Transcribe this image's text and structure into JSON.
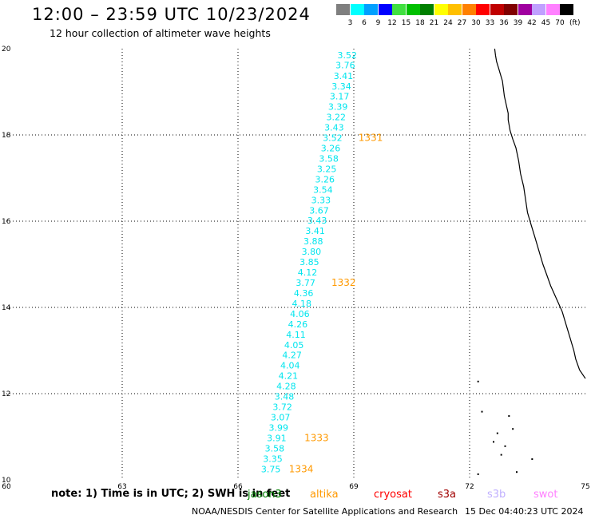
{
  "header": {
    "title": "12:00 – 23:59 UTC 10/23/2024",
    "subtitle": "12 hour collection of altimeter wave heights"
  },
  "legend": {
    "unit": "(ft)",
    "swatches": [
      {
        "color": "#7f7f7f",
        "label": "3"
      },
      {
        "color": "#00ffff",
        "label": "6"
      },
      {
        "color": "#00a0ff",
        "label": "9"
      },
      {
        "color": "#0000ff",
        "label": "12"
      },
      {
        "color": "#40e040",
        "label": "15"
      },
      {
        "color": "#00c000",
        "label": "18"
      },
      {
        "color": "#008000",
        "label": "21"
      },
      {
        "color": "#ffff00",
        "label": "24"
      },
      {
        "color": "#ffc000",
        "label": "27"
      },
      {
        "color": "#ff8000",
        "label": "30"
      },
      {
        "color": "#ff0000",
        "label": "33"
      },
      {
        "color": "#c00000",
        "label": "36"
      },
      {
        "color": "#800000",
        "label": "39"
      },
      {
        "color": "#a000a0",
        "label": "42"
      },
      {
        "color": "#c0a0ff",
        "label": "45"
      },
      {
        "color": "#ff80ff",
        "label": "70"
      },
      {
        "color": "#000000",
        "label": ""
      }
    ]
  },
  "map": {
    "lon_range": [
      60,
      75
    ],
    "lat_range": [
      10,
      20
    ],
    "x_ticks": [
      "60",
      "63",
      "66",
      "69",
      "72",
      "75"
    ],
    "y_ticks": [
      "10",
      "12",
      "14",
      "16",
      "18",
      "20"
    ],
    "grid_lon": [
      63,
      66,
      69,
      72
    ],
    "grid_lat": [
      12,
      14,
      16,
      18
    ],
    "track_color": "#00e5ee",
    "time_color": "#ff9900",
    "coast_color": "#000000",
    "observations": [
      {
        "lon": 68.83,
        "lat": 19.78,
        "swh": "3.52"
      },
      {
        "lon": 68.78,
        "lat": 19.55,
        "swh": "3.76"
      },
      {
        "lon": 68.73,
        "lat": 19.3,
        "swh": "3.41"
      },
      {
        "lon": 68.68,
        "lat": 19.06,
        "swh": "3.34"
      },
      {
        "lon": 68.63,
        "lat": 18.82,
        "swh": "3.17"
      },
      {
        "lon": 68.59,
        "lat": 18.58,
        "swh": "3.39"
      },
      {
        "lon": 68.54,
        "lat": 18.34,
        "swh": "3.22"
      },
      {
        "lon": 68.49,
        "lat": 18.1,
        "swh": "3.43"
      },
      {
        "lon": 68.45,
        "lat": 17.86,
        "swh": "3.52"
      },
      {
        "lon": 68.4,
        "lat": 17.62,
        "swh": "3.26"
      },
      {
        "lon": 68.35,
        "lat": 17.38,
        "swh": "3.58"
      },
      {
        "lon": 68.3,
        "lat": 17.14,
        "swh": "3.25"
      },
      {
        "lon": 68.25,
        "lat": 16.9,
        "swh": "3.26"
      },
      {
        "lon": 68.2,
        "lat": 16.66,
        "swh": "3.54"
      },
      {
        "lon": 68.15,
        "lat": 16.42,
        "swh": "3.33"
      },
      {
        "lon": 68.1,
        "lat": 16.18,
        "swh": "3.67"
      },
      {
        "lon": 68.05,
        "lat": 15.94,
        "swh": "3.43"
      },
      {
        "lon": 68.0,
        "lat": 15.7,
        "swh": "3.41"
      },
      {
        "lon": 67.95,
        "lat": 15.46,
        "swh": "3.88"
      },
      {
        "lon": 67.9,
        "lat": 15.22,
        "swh": "3.80"
      },
      {
        "lon": 67.85,
        "lat": 14.98,
        "swh": "3.85"
      },
      {
        "lon": 67.8,
        "lat": 14.74,
        "swh": "4.12"
      },
      {
        "lon": 67.75,
        "lat": 14.5,
        "swh": "3.77"
      },
      {
        "lon": 67.7,
        "lat": 14.26,
        "swh": "4.36"
      },
      {
        "lon": 67.65,
        "lat": 14.02,
        "swh": "4.18"
      },
      {
        "lon": 67.6,
        "lat": 13.78,
        "swh": "4.06"
      },
      {
        "lon": 67.55,
        "lat": 13.54,
        "swh": "4.26"
      },
      {
        "lon": 67.5,
        "lat": 13.3,
        "swh": "4.11"
      },
      {
        "lon": 67.45,
        "lat": 13.06,
        "swh": "4.05"
      },
      {
        "lon": 67.4,
        "lat": 12.82,
        "swh": "4.27"
      },
      {
        "lon": 67.35,
        "lat": 12.58,
        "swh": "4.04"
      },
      {
        "lon": 67.3,
        "lat": 12.34,
        "swh": "4.21"
      },
      {
        "lon": 67.25,
        "lat": 12.1,
        "swh": "4.28"
      },
      {
        "lon": 67.2,
        "lat": 11.86,
        "swh": "3.48"
      },
      {
        "lon": 67.15,
        "lat": 11.62,
        "swh": "3.72"
      },
      {
        "lon": 67.1,
        "lat": 11.38,
        "swh": "3.07"
      },
      {
        "lon": 67.05,
        "lat": 11.14,
        "swh": "3.99"
      },
      {
        "lon": 67.0,
        "lat": 10.9,
        "swh": "3.91"
      },
      {
        "lon": 66.95,
        "lat": 10.66,
        "swh": "3.58"
      },
      {
        "lon": 66.9,
        "lat": 10.42,
        "swh": "3.35"
      },
      {
        "lon": 66.85,
        "lat": 10.18,
        "swh": "3.75"
      }
    ],
    "pass_times": [
      {
        "lon": 69.12,
        "lat": 17.86,
        "label": "1331"
      },
      {
        "lon": 68.42,
        "lat": 14.5,
        "label": "1332"
      },
      {
        "lon": 67.72,
        "lat": 10.9,
        "label": "1333"
      },
      {
        "lon": 67.32,
        "lat": 10.18,
        "label": "1334"
      }
    ],
    "coastline": [
      [
        72.65,
        20.0
      ],
      [
        72.67,
        19.85
      ],
      [
        72.7,
        19.7
      ],
      [
        72.75,
        19.55
      ],
      [
        72.8,
        19.4
      ],
      [
        72.85,
        19.25
      ],
      [
        72.88,
        19.05
      ],
      [
        72.9,
        18.9
      ],
      [
        72.95,
        18.7
      ],
      [
        73.0,
        18.5
      ],
      [
        73.0,
        18.35
      ],
      [
        73.05,
        18.1
      ],
      [
        73.12,
        17.9
      ],
      [
        73.2,
        17.7
      ],
      [
        73.27,
        17.4
      ],
      [
        73.32,
        17.1
      ],
      [
        73.4,
        16.8
      ],
      [
        73.45,
        16.5
      ],
      [
        73.5,
        16.2
      ],
      [
        73.6,
        15.9
      ],
      [
        73.7,
        15.6
      ],
      [
        73.8,
        15.3
      ],
      [
        73.9,
        15.0
      ],
      [
        74.0,
        14.75
      ],
      [
        74.1,
        14.5
      ],
      [
        74.25,
        14.2
      ],
      [
        74.4,
        13.9
      ],
      [
        74.5,
        13.6
      ],
      [
        74.6,
        13.3
      ],
      [
        74.7,
        13.0
      ],
      [
        74.75,
        12.8
      ],
      [
        74.85,
        12.55
      ],
      [
        75.0,
        12.35
      ]
    ],
    "islands": [
      [
        72.7,
        11.1
      ],
      [
        73.1,
        11.2
      ],
      [
        72.9,
        10.8
      ],
      [
        72.3,
        11.6
      ],
      [
        73.0,
        11.5
      ],
      [
        72.2,
        12.3
      ],
      [
        72.6,
        10.9
      ],
      [
        72.8,
        10.6
      ],
      [
        73.2,
        10.2
      ],
      [
        73.6,
        10.5
      ],
      [
        72.2,
        10.15
      ]
    ]
  },
  "footer": {
    "note": "note: 1) Time is in UTC; 2) SWH is in feet",
    "satellites": [
      {
        "name": "jason3",
        "color": "#008000"
      },
      {
        "name": "altika",
        "color": "#ff9900"
      },
      {
        "name": "cryosat",
        "color": "#ff0000"
      },
      {
        "name": "s3a",
        "color": "#a00000"
      },
      {
        "name": "s3b",
        "color": "#c0b0ff"
      },
      {
        "name": "swot",
        "color": "#ff80ff"
      }
    ],
    "credit": "NOAA/NESDIS Center for Satellite Applications and Research",
    "timestamp": "15 Dec 04:40:23 UTC 2024"
  }
}
